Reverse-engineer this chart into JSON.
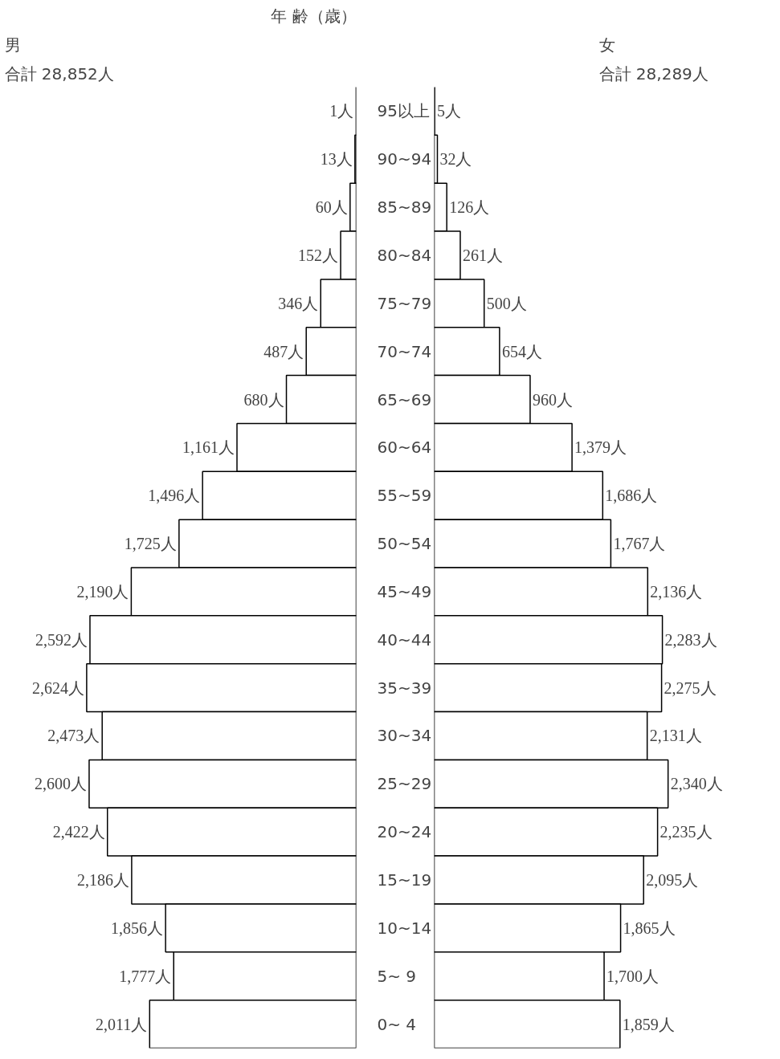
{
  "chart_data": [
    {
      "type": "bar",
      "orientation": "horizontal",
      "title": "男",
      "subtitle": "合計 28,852人",
      "ylabel": "年 齢（歳）",
      "categories": [
        "95以上",
        "90~94",
        "85~89",
        "80~84",
        "75~79",
        "70~74",
        "65~69",
        "60~64",
        "55~59",
        "50~54",
        "45~49",
        "40~44",
        "35~39",
        "30~34",
        "25~29",
        "20~24",
        "15~19",
        "10~14",
        "5~ 9",
        "0~ 4"
      ],
      "values": [
        1,
        13,
        60,
        152,
        346,
        487,
        680,
        1161,
        1496,
        1725,
        2190,
        2592,
        2624,
        2473,
        2600,
        2422,
        2186,
        1856,
        1777,
        2011
      ],
      "value_labels": [
        "1人",
        "13人",
        "60人",
        "152人",
        "346人",
        "487人",
        "680人",
        "1,161人",
        "1,496人",
        "1,725人",
        "2,190人",
        "2,592人",
        "2,624人",
        "2,473人",
        "2,600人",
        "2,422人",
        "2,186人",
        "1,856人",
        "1,777人",
        "2,011人"
      ],
      "color": "#ffffff",
      "tick_labels": "y",
      "grid": false
    },
    {
      "type": "bar",
      "orientation": "horizontal",
      "title": "女",
      "subtitle": "合計 28,289人",
      "values": [
        5,
        32,
        126,
        261,
        500,
        654,
        960,
        1379,
        1686,
        1767,
        2136,
        2283,
        2275,
        2131,
        2340,
        2235,
        2095,
        1865,
        1700,
        1859
      ],
      "value_labels": [
        "5人",
        "32人",
        "126人",
        "261人",
        "500人",
        "654人",
        "960人",
        "1,379人",
        "1,686人",
        "1,767人",
        "2,136人",
        "2,283人",
        "2,275人",
        "2,131人",
        "2,340人",
        "2,235人",
        "2,095人",
        "1,865人",
        "1,700人",
        "1,859人"
      ],
      "color": "#ffffff",
      "tick_labels": false,
      "grid": false
    }
  ]
}
